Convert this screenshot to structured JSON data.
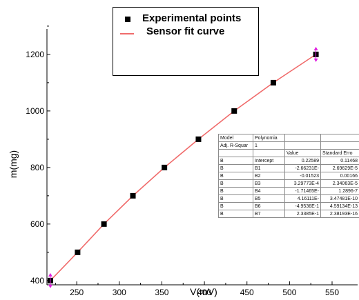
{
  "legend": {
    "items": [
      {
        "label": "Experimental points",
        "symbol": "square",
        "color": "#000000"
      },
      {
        "label": "Sensor fit curve",
        "symbol": "line",
        "color": "#f06b6b"
      }
    ]
  },
  "stats_table": {
    "header": [
      [
        "Model",
        "Polynomia",
        "",
        ""
      ],
      [
        "Adj. R-Squar",
        "1",
        "",
        ""
      ],
      [
        "",
        "",
        "Value",
        "Standard Erro"
      ]
    ],
    "rows": [
      [
        "B",
        "Intercept",
        "0.22589",
        "0.11468"
      ],
      [
        "B",
        "B1",
        "-2.66231E-",
        "2.69629E-5"
      ],
      [
        "B",
        "B2",
        "-0.01523",
        "0.00166"
      ],
      [
        "B",
        "B3",
        "3.29773E-4",
        "2.34063E-5"
      ],
      [
        "B",
        "B4",
        "-1.71465E-",
        "1.2896-7"
      ],
      [
        "B",
        "B5",
        "4.16111E-",
        "3.47481E-10"
      ],
      [
        "B",
        "B6",
        "-4.9536E-1",
        "4.59134E-13"
      ],
      [
        "B",
        "B7",
        "2.3385E-1",
        "2.38193E-16"
      ]
    ]
  },
  "chart_data": {
    "type": "scatter",
    "xlabel": "V(mV)",
    "ylabel": "m(mg)",
    "xlim": [
      215,
      580
    ],
    "ylim": [
      385,
      1290
    ],
    "xticks": [
      250,
      300,
      350,
      400,
      450,
      500,
      550
    ],
    "yticks": [
      400,
      600,
      800,
      1000,
      1200
    ],
    "grid": false,
    "legend_position": "top",
    "series": [
      {
        "name": "Experimental points",
        "type": "scatter",
        "color": "#000000",
        "x": [
          219,
          251,
          282,
          316,
          353,
          393,
          435,
          481,
          531
        ],
        "y": [
          400,
          500,
          600,
          700,
          800,
          900,
          1000,
          1100,
          1200
        ]
      },
      {
        "name": "Sensor fit curve",
        "type": "line",
        "color": "#f06b6b",
        "x": [
          219,
          251,
          282,
          316,
          353,
          393,
          435,
          481,
          531
        ],
        "y": [
          400,
          500,
          600,
          700,
          800,
          900,
          1000,
          1100,
          1200
        ]
      }
    ],
    "error_markers": {
      "color": "#e020e0",
      "points": [
        [
          219,
          400
        ],
        [
          531,
          1200
        ]
      ]
    }
  }
}
